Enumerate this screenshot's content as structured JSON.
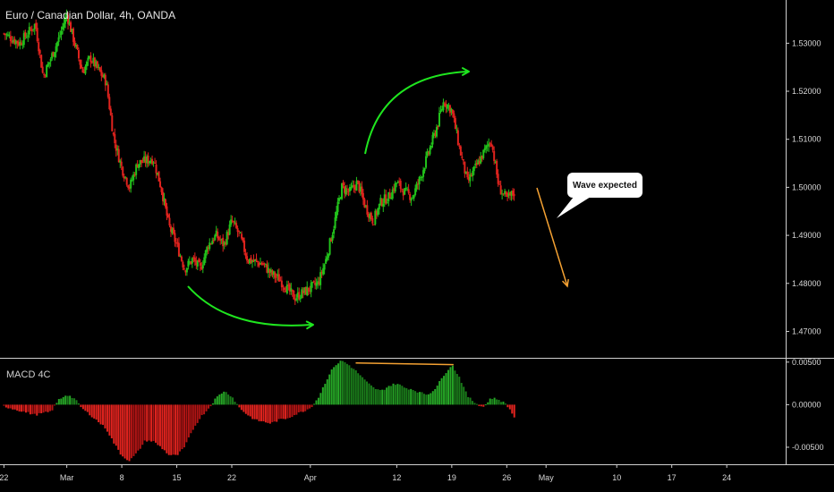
{
  "title": "Euro / Canadian Dollar, 4h, OANDA",
  "annotation": "Wave expected",
  "colors": {
    "up": "#22c31b",
    "down": "#e0231e",
    "arrow_green": "#1fe61f",
    "arrow_orange": "#f4a132",
    "bg": "#000000"
  },
  "chart_data": [
    {
      "type": "candlestick",
      "title": "Euro / Canadian Dollar, 4h, OANDA",
      "y_ticks": [
        "1.47000",
        "1.48000",
        "1.49000",
        "1.50000",
        "1.51000",
        "1.52000",
        "1.53000"
      ],
      "ylim": [
        1.4645,
        1.539
      ],
      "x_ticks": [
        {
          "label": "22",
          "day": -7
        },
        {
          "label": "Mar",
          "day": 1
        },
        {
          "label": "8",
          "day": 8
        },
        {
          "label": "15",
          "day": 15
        },
        {
          "label": "22",
          "day": 22
        },
        {
          "label": "Apr",
          "day": 32
        },
        {
          "label": "12",
          "day": 43
        },
        {
          "label": "19",
          "day": 50
        },
        {
          "label": "26",
          "day": 57
        },
        {
          "label": "May",
          "day": 62
        },
        {
          "label": "10",
          "day": 71
        },
        {
          "label": "17",
          "day": 78
        },
        {
          "label": "24",
          "day": 85
        }
      ],
      "xlim_days": [
        -7.5,
        92.5
      ],
      "price_path": [
        [
          -7,
          1.532
        ],
        [
          -5,
          1.53
        ],
        [
          -3,
          1.534
        ],
        [
          -2,
          1.523
        ],
        [
          0,
          1.531
        ],
        [
          1,
          1.536
        ],
        [
          2,
          1.53
        ],
        [
          3,
          1.524
        ],
        [
          4,
          1.527
        ],
        [
          6,
          1.522
        ],
        [
          7,
          1.51
        ],
        [
          8,
          1.504
        ],
        [
          9,
          1.5
        ],
        [
          10,
          1.505
        ],
        [
          12,
          1.506
        ],
        [
          13,
          1.5
        ],
        [
          14,
          1.492
        ],
        [
          15,
          1.488
        ],
        [
          16,
          1.483
        ],
        [
          17,
          1.485
        ],
        [
          18,
          1.483
        ],
        [
          19,
          1.488
        ],
        [
          20,
          1.49
        ],
        [
          21,
          1.488
        ],
        [
          22,
          1.493
        ],
        [
          23,
          1.49
        ],
        [
          24,
          1.485
        ],
        [
          26,
          1.484
        ],
        [
          27,
          1.482
        ],
        [
          28,
          1.481
        ],
        [
          29,
          1.479
        ],
        [
          30,
          1.477
        ],
        [
          31,
          1.478
        ],
        [
          32,
          1.479
        ],
        [
          33,
          1.48
        ],
        [
          34,
          1.485
        ],
        [
          35,
          1.492
        ],
        [
          36,
          1.5
        ],
        [
          37,
          1.499
        ],
        [
          38,
          1.501
        ],
        [
          39,
          1.496
        ],
        [
          40,
          1.493
        ],
        [
          41,
          1.497
        ],
        [
          42,
          1.498
        ],
        [
          43,
          1.501
        ],
        [
          44,
          1.499
        ],
        [
          45,
          1.498
        ],
        [
          46,
          1.502
        ],
        [
          47,
          1.507
        ],
        [
          48,
          1.512
        ],
        [
          49,
          1.518
        ],
        [
          50,
          1.516
        ],
        [
          51,
          1.508
        ],
        [
          52,
          1.501
        ],
        [
          53,
          1.504
        ],
        [
          54,
          1.507
        ],
        [
          55,
          1.51
        ],
        [
          56,
          1.5
        ],
        [
          57,
          1.4975
        ],
        [
          58,
          1.499
        ]
      ],
      "low_min": 1.4725,
      "high_max": 1.5395
    },
    {
      "type": "histogram",
      "title": "MACD 4C",
      "y_ticks": [
        "-0.00500",
        "0.00000",
        "0.00500"
      ],
      "ylim": [
        -0.007,
        0.0054
      ],
      "profile": [
        [
          -7,
          -0.0002
        ],
        [
          -5,
          -0.0007
        ],
        [
          -3,
          -0.0012
        ],
        [
          -1,
          -0.0008
        ],
        [
          0,
          0.0006
        ],
        [
          1,
          0.0012
        ],
        [
          2,
          0.0007
        ],
        [
          3,
          -0.0005
        ],
        [
          4,
          -0.0012
        ],
        [
          6,
          -0.0028
        ],
        [
          7,
          -0.0045
        ],
        [
          8,
          -0.006
        ],
        [
          9,
          -0.0066
        ],
        [
          10,
          -0.0056
        ],
        [
          11,
          -0.0042
        ],
        [
          12,
          -0.0043
        ],
        [
          13,
          -0.005
        ],
        [
          14,
          -0.0059
        ],
        [
          15,
          -0.006
        ],
        [
          16,
          -0.005
        ],
        [
          17,
          -0.003
        ],
        [
          18,
          -0.0015
        ],
        [
          19,
          -0.0005
        ],
        [
          20,
          0.0008
        ],
        [
          21,
          0.0016
        ],
        [
          22,
          0.001
        ],
        [
          23,
          -0.0004
        ],
        [
          24,
          -0.0012
        ],
        [
          25,
          -0.0018
        ],
        [
          26,
          -0.002
        ],
        [
          27,
          -0.0022
        ],
        [
          28,
          -0.0018
        ],
        [
          29,
          -0.0016
        ],
        [
          30,
          -0.0012
        ],
        [
          31,
          -0.0008
        ],
        [
          32,
          -0.0004
        ],
        [
          33,
          0.0008
        ],
        [
          34,
          0.0028
        ],
        [
          35,
          0.0045
        ],
        [
          36,
          0.0052
        ],
        [
          37,
          0.0046
        ],
        [
          38,
          0.0038
        ],
        [
          39,
          0.0028
        ],
        [
          40,
          0.002
        ],
        [
          41,
          0.0016
        ],
        [
          42,
          0.0022
        ],
        [
          43,
          0.0025
        ],
        [
          44,
          0.002
        ],
        [
          45,
          0.0018
        ],
        [
          46,
          0.0014
        ],
        [
          47,
          0.0012
        ],
        [
          48,
          0.002
        ],
        [
          49,
          0.0035
        ],
        [
          50,
          0.0047
        ],
        [
          51,
          0.0032
        ],
        [
          52,
          0.001
        ],
        [
          53,
          0.0002
        ],
        [
          54,
          -0.0003
        ],
        [
          55,
          0.0008
        ],
        [
          56,
          0.0006
        ],
        [
          57,
          0.0
        ],
        [
          58,
          -0.0015
        ]
      ],
      "annotation_line_days": [
        38,
        50
      ]
    }
  ]
}
